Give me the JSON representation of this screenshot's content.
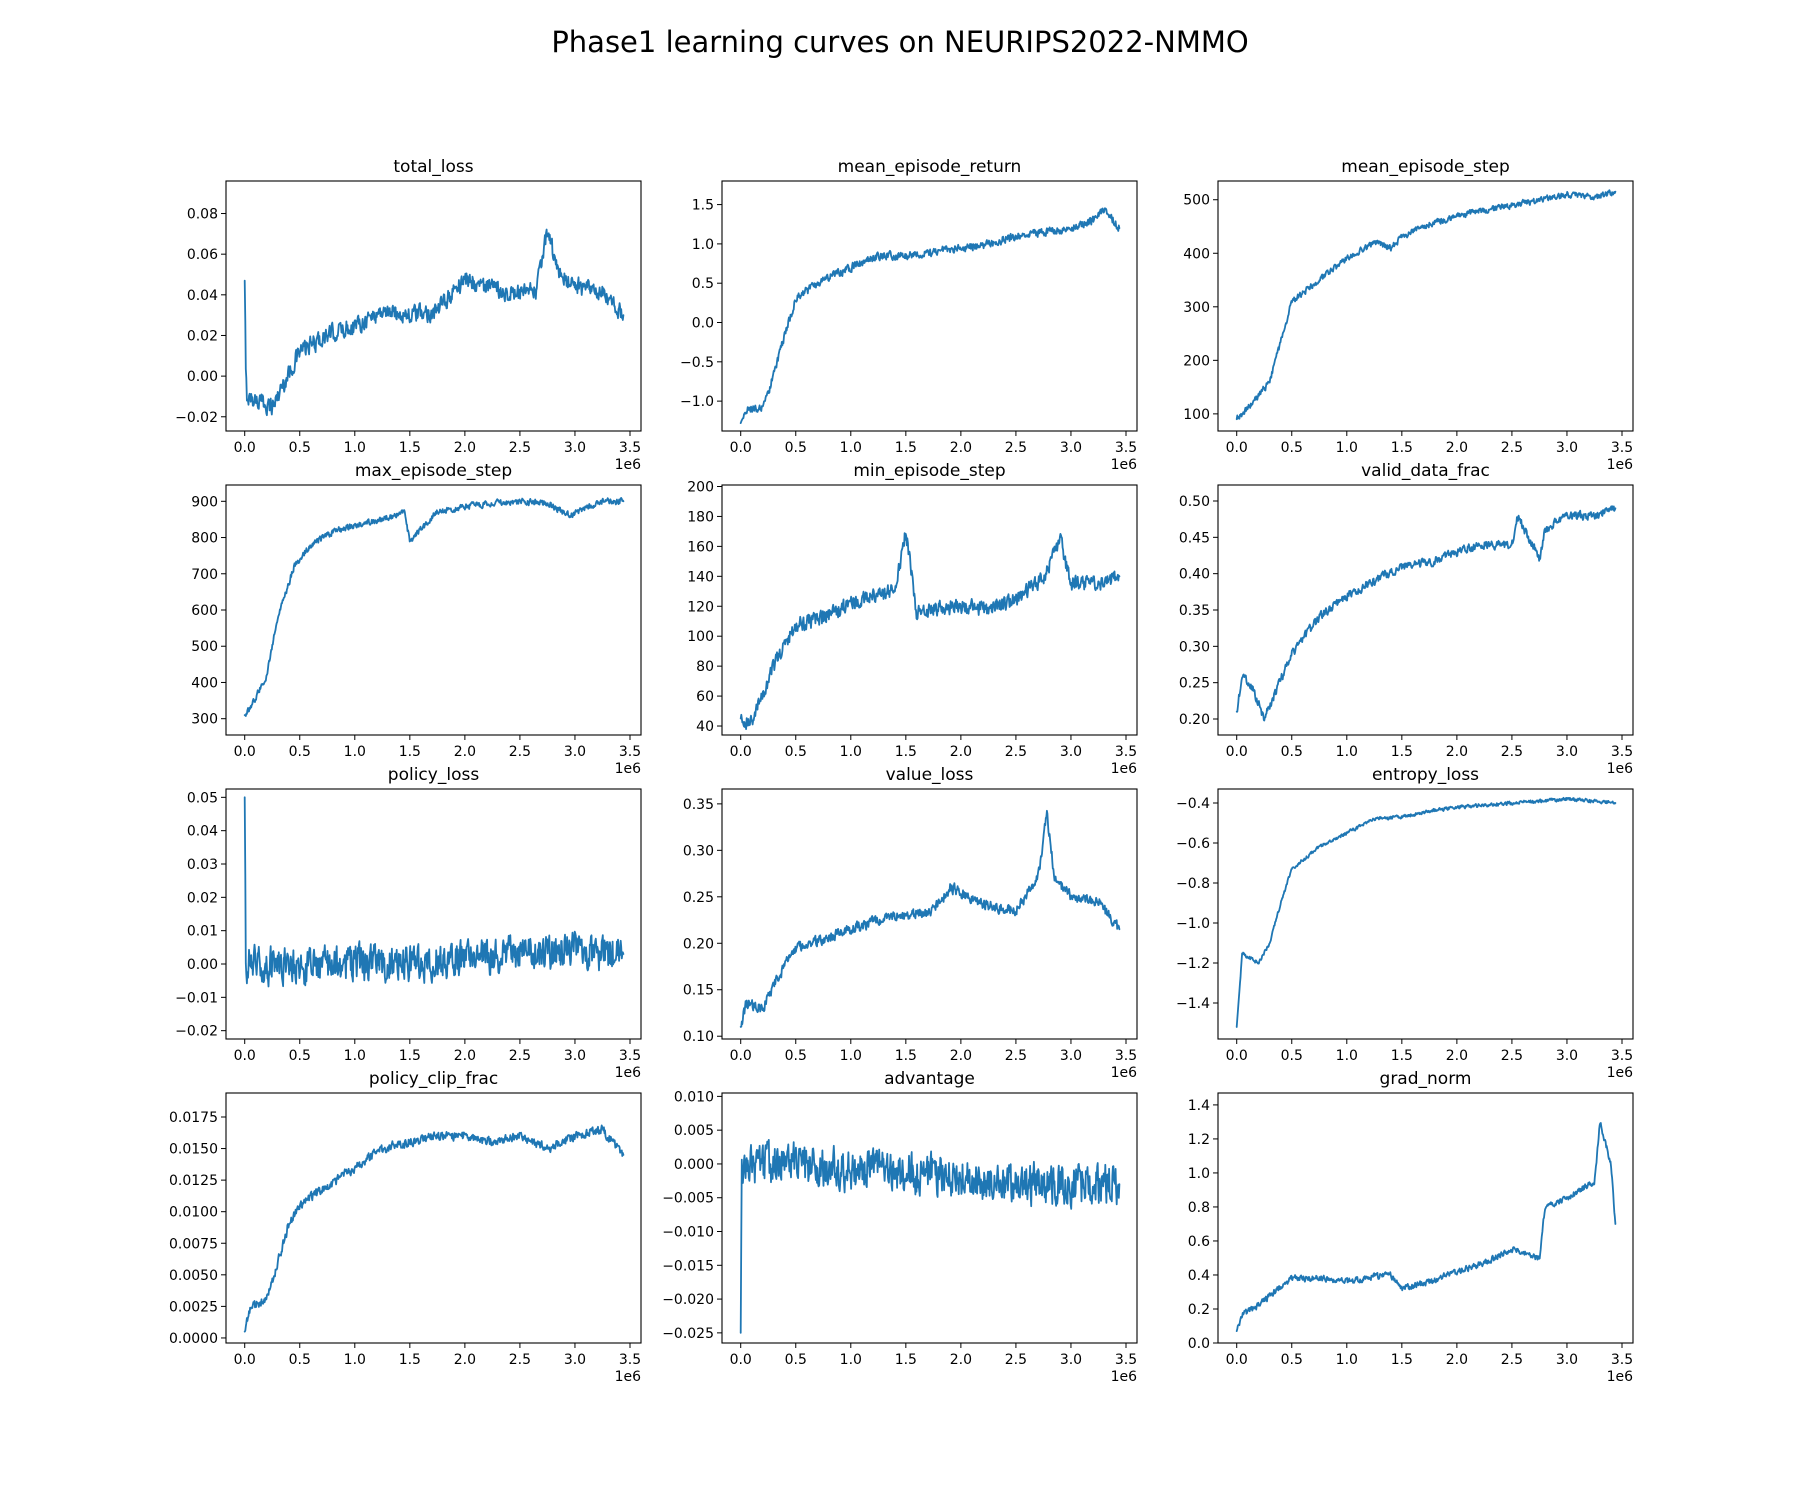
{
  "figure_title": "Phase1 learning curves on NEURIPS2022-NMMO",
  "colors": {
    "line": "#1f77b4",
    "axes": "#000000",
    "background": "#ffffff"
  },
  "chart_data": [
    {
      "type": "line",
      "title": "total_loss",
      "xlim": [
        -0.17,
        3.6
      ],
      "x_ticks": [
        "0.0",
        "0.5",
        "1.0",
        "1.5",
        "2.0",
        "2.5",
        "3.0",
        "3.5"
      ],
      "x_scale_label": "1e6",
      "ylim": [
        -0.027,
        0.096
      ],
      "y_ticks": [
        "-0.02",
        "0.00",
        "0.02",
        "0.04",
        "0.06",
        "0.08"
      ],
      "y_tick_values": [
        -0.02,
        0.0,
        0.02,
        0.04,
        0.06,
        0.08
      ],
      "noise": 0.006,
      "series": [
        {
          "x": [
            0.0,
            0.01,
            0.02,
            0.25,
            0.5,
            0.75,
            1.0,
            1.25,
            1.5,
            1.75,
            2.0,
            2.25,
            2.5,
            2.65,
            2.75,
            2.85,
            3.0,
            3.25,
            3.44
          ],
          "y": [
            0.047,
            0.0,
            -0.01,
            -0.015,
            0.012,
            0.02,
            0.025,
            0.032,
            0.03,
            0.032,
            0.048,
            0.043,
            0.04,
            0.042,
            0.072,
            0.05,
            0.045,
            0.04,
            0.03
          ]
        }
      ]
    },
    {
      "type": "line",
      "title": "mean_episode_return",
      "xlim": [
        -0.17,
        3.6
      ],
      "x_ticks": [
        "0.0",
        "0.5",
        "1.0",
        "1.5",
        "2.0",
        "2.5",
        "3.0",
        "3.5"
      ],
      "x_scale_label": "1e6",
      "ylim": [
        -1.38,
        1.8
      ],
      "y_ticks": [
        "-1.0",
        "-0.5",
        "0.0",
        "0.5",
        "1.0",
        "1.5"
      ],
      "y_tick_values": [
        -1.0,
        -0.5,
        0.0,
        0.5,
        1.0,
        1.5
      ],
      "noise": 0.07,
      "series": [
        {
          "x": [
            0.0,
            0.05,
            0.2,
            0.25,
            0.35,
            0.5,
            0.75,
            1.0,
            1.25,
            1.5,
            1.75,
            2.0,
            2.25,
            2.5,
            2.75,
            3.0,
            3.2,
            3.3,
            3.44
          ],
          "y": [
            -1.28,
            -1.1,
            -1.1,
            -0.9,
            -0.4,
            0.3,
            0.55,
            0.7,
            0.85,
            0.85,
            0.9,
            0.95,
            1.0,
            1.1,
            1.15,
            1.2,
            1.3,
            1.45,
            1.2
          ]
        }
      ]
    },
    {
      "type": "line",
      "title": "mean_episode_step",
      "xlim": [
        -0.17,
        3.6
      ],
      "x_ticks": [
        "0.0",
        "0.5",
        "1.0",
        "1.5",
        "2.0",
        "2.5",
        "3.0",
        "3.5"
      ],
      "x_scale_label": "1e6",
      "ylim": [
        68,
        535
      ],
      "y_ticks": [
        "100",
        "200",
        "300",
        "400",
        "500"
      ],
      "y_tick_values": [
        100,
        200,
        300,
        400,
        500
      ],
      "noise": 8,
      "series": [
        {
          "x": [
            0.0,
            0.1,
            0.3,
            0.5,
            0.75,
            1.0,
            1.25,
            1.4,
            1.5,
            1.75,
            2.0,
            2.25,
            2.5,
            2.75,
            3.0,
            3.25,
            3.44
          ],
          "y": [
            90,
            110,
            160,
            310,
            350,
            390,
            420,
            410,
            430,
            455,
            470,
            480,
            490,
            500,
            510,
            505,
            515
          ]
        }
      ]
    },
    {
      "type": "line",
      "title": "max_episode_step",
      "xlim": [
        -0.17,
        3.6
      ],
      "x_ticks": [
        "0.0",
        "0.5",
        "1.0",
        "1.5",
        "2.0",
        "2.5",
        "3.0",
        "3.5"
      ],
      "x_scale_label": "1e6",
      "ylim": [
        255,
        945
      ],
      "y_ticks": [
        "300",
        "400",
        "500",
        "600",
        "700",
        "800",
        "900"
      ],
      "y_tick_values": [
        300,
        400,
        500,
        600,
        700,
        800,
        900
      ],
      "noise": 12,
      "series": [
        {
          "x": [
            0.0,
            0.05,
            0.2,
            0.3,
            0.45,
            0.6,
            0.8,
            1.0,
            1.25,
            1.45,
            1.5,
            1.75,
            2.0,
            2.25,
            2.5,
            2.75,
            2.95,
            3.25,
            3.44
          ],
          "y": [
            310,
            330,
            420,
            580,
            720,
            780,
            815,
            835,
            850,
            870,
            790,
            870,
            885,
            895,
            900,
            895,
            860,
            900,
            900
          ]
        }
      ]
    },
    {
      "type": "line",
      "title": "min_episode_step",
      "xlim": [
        -0.17,
        3.6
      ],
      "x_ticks": [
        "0.0",
        "0.5",
        "1.0",
        "1.5",
        "2.0",
        "2.5",
        "3.0",
        "3.5"
      ],
      "x_scale_label": "1e6",
      "ylim": [
        34,
        201
      ],
      "y_ticks": [
        "40",
        "60",
        "80",
        "100",
        "120",
        "140",
        "160",
        "180",
        "200"
      ],
      "y_tick_values": [
        40,
        60,
        80,
        100,
        120,
        140,
        160,
        180,
        200
      ],
      "noise": 7,
      "series": [
        {
          "x": [
            0.0,
            0.1,
            0.3,
            0.5,
            0.75,
            1.0,
            1.25,
            1.4,
            1.5,
            1.6,
            1.75,
            2.0,
            2.25,
            2.5,
            2.75,
            2.9,
            3.0,
            3.25,
            3.44
          ],
          "y": [
            45,
            42,
            80,
            108,
            112,
            122,
            128,
            130,
            170,
            115,
            118,
            120,
            118,
            125,
            138,
            165,
            135,
            135,
            140
          ]
        }
      ]
    },
    {
      "type": "line",
      "title": "valid_data_frac",
      "xlim": [
        -0.17,
        3.6
      ],
      "x_ticks": [
        "0.0",
        "0.5",
        "1.0",
        "1.5",
        "2.0",
        "2.5",
        "3.0",
        "3.5"
      ],
      "x_scale_label": "1e6",
      "ylim": [
        0.178,
        0.522
      ],
      "y_ticks": [
        "0.20",
        "0.25",
        "0.30",
        "0.35",
        "0.40",
        "0.45",
        "0.50"
      ],
      "y_tick_values": [
        0.2,
        0.25,
        0.3,
        0.35,
        0.4,
        0.45,
        0.5
      ],
      "noise": 0.008,
      "series": [
        {
          "x": [
            0.0,
            0.05,
            0.15,
            0.25,
            0.5,
            0.75,
            1.0,
            1.25,
            1.5,
            1.75,
            2.0,
            2.25,
            2.5,
            2.55,
            2.75,
            2.8,
            3.0,
            3.25,
            3.44
          ],
          "y": [
            0.21,
            0.26,
            0.24,
            0.2,
            0.29,
            0.34,
            0.37,
            0.39,
            0.41,
            0.415,
            0.43,
            0.44,
            0.44,
            0.48,
            0.42,
            0.46,
            0.48,
            0.48,
            0.49
          ]
        }
      ]
    },
    {
      "type": "line",
      "title": "policy_loss",
      "xlim": [
        -0.17,
        3.6
      ],
      "x_ticks": [
        "0.0",
        "0.5",
        "1.0",
        "1.5",
        "2.0",
        "2.5",
        "3.0",
        "3.5"
      ],
      "x_scale_label": "1e6",
      "ylim": [
        -0.0225,
        0.0525
      ],
      "y_ticks": [
        "-0.02",
        "-0.01",
        "0.00",
        "0.01",
        "0.02",
        "0.03",
        "0.04",
        "0.05"
      ],
      "y_tick_values": [
        -0.02,
        -0.01,
        0.0,
        0.01,
        0.02,
        0.03,
        0.04,
        0.05
      ],
      "noise": 0.0075,
      "series": [
        {
          "x": [
            0.0,
            0.01,
            0.02,
            0.5,
            1.0,
            1.5,
            2.0,
            2.5,
            3.0,
            3.44
          ],
          "y": [
            0.05,
            0.0,
            0.0,
            -0.001,
            0.0,
            0.0,
            0.002,
            0.003,
            0.004,
            0.003
          ]
        }
      ]
    },
    {
      "type": "line",
      "title": "value_loss",
      "xlim": [
        -0.17,
        3.6
      ],
      "x_ticks": [
        "0.0",
        "0.5",
        "1.0",
        "1.5",
        "2.0",
        "2.5",
        "3.0",
        "3.5"
      ],
      "x_scale_label": "1e6",
      "ylim": [
        0.097,
        0.366
      ],
      "y_ticks": [
        "0.10",
        "0.15",
        "0.20",
        "0.25",
        "0.30",
        "0.35"
      ],
      "y_tick_values": [
        0.1,
        0.15,
        0.2,
        0.25,
        0.3,
        0.35
      ],
      "noise": 0.008,
      "series": [
        {
          "x": [
            0.0,
            0.05,
            0.2,
            0.3,
            0.5,
            0.75,
            1.0,
            1.25,
            1.5,
            1.75,
            1.9,
            2.0,
            2.25,
            2.5,
            2.7,
            2.78,
            2.85,
            3.0,
            3.25,
            3.44
          ],
          "y": [
            0.11,
            0.135,
            0.13,
            0.155,
            0.195,
            0.205,
            0.215,
            0.225,
            0.23,
            0.235,
            0.26,
            0.255,
            0.24,
            0.235,
            0.27,
            0.34,
            0.27,
            0.25,
            0.245,
            0.215
          ]
        }
      ]
    },
    {
      "type": "line",
      "title": "entropy_loss",
      "xlim": [
        -0.17,
        3.6
      ],
      "x_ticks": [
        "0.0",
        "0.5",
        "1.0",
        "1.5",
        "2.0",
        "2.5",
        "3.0",
        "3.5"
      ],
      "x_scale_label": "1e6",
      "ylim": [
        -1.58,
        -0.33
      ],
      "y_ticks": [
        "-1.4",
        "-1.2",
        "-1.0",
        "-0.8",
        "-0.6",
        "-0.4"
      ],
      "y_tick_values": [
        -1.4,
        -1.2,
        -1.0,
        -0.8,
        -0.6,
        -0.4
      ],
      "noise": 0.012,
      "series": [
        {
          "x": [
            0.0,
            0.05,
            0.1,
            0.2,
            0.3,
            0.4,
            0.5,
            0.75,
            1.0,
            1.25,
            1.5,
            1.75,
            2.0,
            2.25,
            2.5,
            2.75,
            3.0,
            3.25,
            3.44
          ],
          "y": [
            -1.52,
            -1.15,
            -1.17,
            -1.2,
            -1.1,
            -0.9,
            -0.73,
            -0.62,
            -0.55,
            -0.48,
            -0.47,
            -0.44,
            -0.42,
            -0.41,
            -0.4,
            -0.39,
            -0.38,
            -0.39,
            -0.4
          ]
        }
      ]
    },
    {
      "type": "line",
      "title": "policy_clip_frac",
      "xlim": [
        -0.17,
        3.6
      ],
      "x_ticks": [
        "0.0",
        "0.5",
        "1.0",
        "1.5",
        "2.0",
        "2.5",
        "3.0",
        "3.5"
      ],
      "x_scale_label": "1e6",
      "ylim": [
        -0.0004,
        0.0194
      ],
      "y_ticks": [
        "0.0000",
        "0.0025",
        "0.0050",
        "0.0075",
        "0.0100",
        "0.0125",
        "0.0150",
        "0.0175"
      ],
      "y_tick_values": [
        0.0,
        0.0025,
        0.005,
        0.0075,
        0.01,
        0.0125,
        0.015,
        0.0175
      ],
      "noise": 0.0005,
      "series": [
        {
          "x": [
            0.0,
            0.05,
            0.2,
            0.3,
            0.4,
            0.5,
            0.75,
            1.0,
            1.25,
            1.5,
            1.75,
            2.0,
            2.25,
            2.5,
            2.75,
            3.0,
            3.25,
            3.44
          ],
          "y": [
            0.0005,
            0.0025,
            0.003,
            0.006,
            0.009,
            0.0105,
            0.012,
            0.0135,
            0.015,
            0.0155,
            0.016,
            0.016,
            0.0155,
            0.016,
            0.015,
            0.016,
            0.0165,
            0.0145
          ]
        }
      ]
    },
    {
      "type": "line",
      "title": "advantage",
      "xlim": [
        -0.17,
        3.6
      ],
      "x_ticks": [
        "0.0",
        "0.5",
        "1.0",
        "1.5",
        "2.0",
        "2.5",
        "3.0",
        "3.5"
      ],
      "x_scale_label": "1e6",
      "ylim": [
        -0.0265,
        0.0105
      ],
      "y_ticks": [
        "-0.025",
        "-0.020",
        "-0.015",
        "-0.010",
        "-0.005",
        "0.000",
        "0.005",
        "0.010"
      ],
      "y_tick_values": [
        -0.025,
        -0.02,
        -0.015,
        -0.01,
        -0.005,
        0.0,
        0.005,
        0.01
      ],
      "noise": 0.0042,
      "series": [
        {
          "x": [
            0.0,
            0.01,
            0.02,
            0.5,
            1.0,
            1.5,
            2.0,
            2.5,
            3.0,
            3.44
          ],
          "y": [
            -0.025,
            0.0,
            0.0,
            0.0,
            -0.001,
            -0.001,
            -0.002,
            -0.003,
            -0.003,
            -0.003
          ]
        }
      ]
    },
    {
      "type": "line",
      "title": "grad_norm",
      "xlim": [
        -0.17,
        3.6
      ],
      "x_ticks": [
        "0.0",
        "0.5",
        "1.0",
        "1.5",
        "2.0",
        "2.5",
        "3.0",
        "3.5"
      ],
      "x_scale_label": "1e6",
      "ylim": [
        0.0,
        1.47
      ],
      "y_ticks": [
        "0.0",
        "0.2",
        "0.4",
        "0.6",
        "0.8",
        "1.0",
        "1.2",
        "1.4"
      ],
      "y_tick_values": [
        0.0,
        0.2,
        0.4,
        0.6,
        0.8,
        1.0,
        1.2,
        1.4
      ],
      "noise": 0.025,
      "series": [
        {
          "x": [
            0.0,
            0.05,
            0.2,
            0.4,
            0.5,
            0.75,
            1.0,
            1.25,
            1.4,
            1.5,
            1.75,
            2.0,
            2.25,
            2.5,
            2.75,
            2.8,
            3.0,
            3.25,
            3.3,
            3.4,
            3.44
          ],
          "y": [
            0.07,
            0.17,
            0.22,
            0.33,
            0.38,
            0.38,
            0.36,
            0.39,
            0.4,
            0.32,
            0.36,
            0.42,
            0.47,
            0.55,
            0.5,
            0.8,
            0.85,
            0.95,
            1.3,
            1.05,
            0.7
          ]
        }
      ]
    }
  ]
}
